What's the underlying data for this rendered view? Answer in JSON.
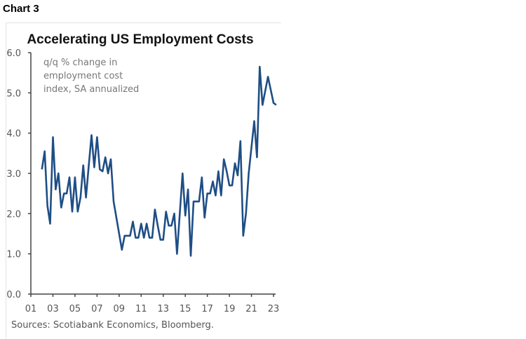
{
  "label": "Chart 3",
  "chart_data": {
    "type": "line",
    "title": "Accelerating US Employment Costs",
    "annotation": [
      "q/q % change in",
      "employment cost",
      "index, SA annualized"
    ],
    "source": "Sources: Scotiabank Economics, Bloomberg.",
    "xlim": [
      2001,
      2023
    ],
    "ylim": [
      0,
      6
    ],
    "yticks": [
      "0.0",
      "1.0",
      "2.0",
      "3.0",
      "4.0",
      "5.0",
      "6.0"
    ],
    "xticks": [
      "01",
      "03",
      "05",
      "07",
      "09",
      "11",
      "13",
      "15",
      "17",
      "19",
      "21",
      "23"
    ],
    "grid": false,
    "line_color": "#1f4e85",
    "series": [
      {
        "x": [
          2002.0,
          2002.25,
          2002.5,
          2002.75,
          2003.0,
          2003.25,
          2003.5,
          2003.75,
          2004.0,
          2004.25,
          2004.5,
          2004.75,
          2005.0,
          2005.25,
          2005.5,
          2005.75,
          2006.0,
          2006.25,
          2006.5,
          2006.75,
          2007.0,
          2007.25,
          2007.5,
          2007.75,
          2008.0,
          2008.25,
          2008.5,
          2009.25,
          2009.5,
          2009.75,
          2010.0,
          2010.25,
          2010.5,
          2010.75,
          2011.0,
          2011.25,
          2011.5,
          2011.75,
          2012.0,
          2012.25,
          2012.5,
          2012.75,
          2013.0,
          2013.25,
          2013.5,
          2013.75,
          2014.0,
          2014.25,
          2014.75,
          2015.0,
          2015.25,
          2015.5,
          2015.75,
          2016.0,
          2016.25,
          2016.5,
          2016.75,
          2017.0,
          2017.25,
          2017.5,
          2017.75,
          2018.0,
          2018.25,
          2018.5,
          2018.75,
          2019.0,
          2019.25,
          2019.5,
          2019.75,
          2020.0,
          2020.25,
          2020.5,
          2020.75,
          2021.25,
          2021.5,
          2021.75,
          2022.0,
          2022.5,
          2023.0,
          2023.25
        ],
        "y": [
          3.1,
          3.55,
          2.2,
          1.75,
          3.9,
          2.6,
          3.0,
          2.15,
          2.5,
          2.5,
          2.9,
          2.05,
          2.9,
          2.05,
          2.4,
          3.2,
          2.4,
          3.2,
          3.95,
          3.15,
          3.9,
          3.1,
          3.05,
          3.4,
          3.0,
          3.35,
          2.3,
          1.1,
          1.45,
          1.45,
          1.45,
          1.8,
          1.4,
          1.4,
          1.75,
          1.4,
          1.75,
          1.4,
          1.4,
          2.1,
          1.7,
          1.35,
          1.35,
          2.05,
          1.7,
          1.7,
          2.0,
          1.0,
          3.0,
          1.95,
          2.6,
          0.95,
          2.3,
          2.3,
          2.3,
          2.9,
          1.9,
          2.5,
          2.5,
          2.8,
          2.45,
          3.05,
          2.45,
          3.35,
          3.05,
          2.7,
          2.7,
          3.25,
          2.95,
          3.8,
          1.45,
          2.0,
          3.0,
          4.3,
          3.4,
          5.65,
          4.7,
          5.4,
          4.75,
          4.7
        ]
      }
    ]
  }
}
